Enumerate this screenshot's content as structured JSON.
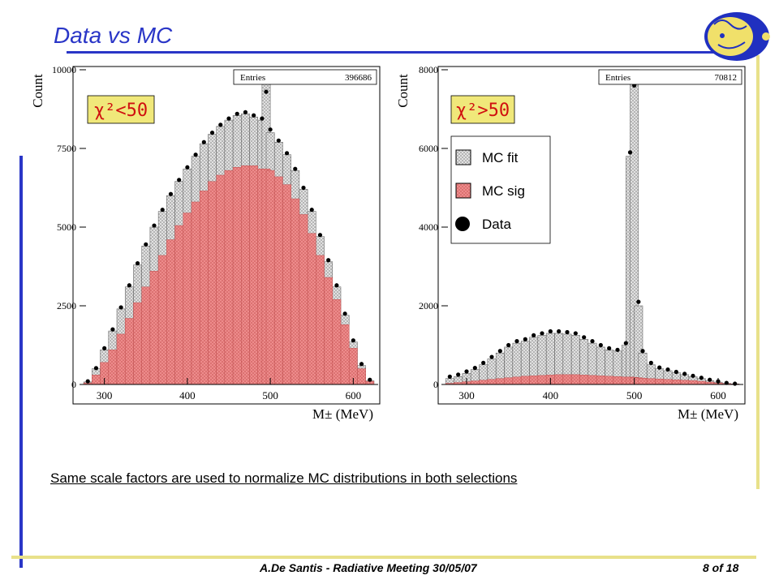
{
  "slide": {
    "title": "Data vs MC",
    "caption": "Same scale factors  are used to normalize MC distributions in both selections",
    "footer": "A.De Santis - Radiative Meeting 30/05/07",
    "page": "8 of 18"
  },
  "colors": {
    "title": "#2a36c7",
    "sig_fill": "#f09090",
    "fit_fill": "#d8d8d8",
    "data": "#000000"
  },
  "chart_data": [
    {
      "type": "bar",
      "selection_label": "χ²<50",
      "stats_label": "Entries",
      "stats_value": "396686",
      "xlabel": "M± (MeV)",
      "ylabel": "Count",
      "xlim": [
        270,
        630
      ],
      "ylim": [
        0,
        10000
      ],
      "yticks": [
        "0",
        "2500",
        "5000",
        "7500",
        "10000"
      ],
      "xticks": [
        "300",
        "400",
        "500",
        "600"
      ],
      "x": [
        280,
        290,
        300,
        310,
        320,
        330,
        340,
        350,
        360,
        370,
        380,
        390,
        400,
        410,
        420,
        430,
        440,
        450,
        460,
        470,
        480,
        490,
        495,
        500,
        510,
        520,
        530,
        540,
        550,
        560,
        570,
        580,
        590,
        600,
        610,
        620
      ],
      "series": [
        {
          "name": "MC sig",
          "values": [
            50,
            300,
            700,
            1100,
            1600,
            2100,
            2600,
            3100,
            3600,
            4100,
            4600,
            5050,
            5450,
            5800,
            6150,
            6450,
            6650,
            6800,
            6900,
            6950,
            6950,
            6850,
            6850,
            6800,
            6600,
            6350,
            5900,
            5400,
            4800,
            4100,
            3400,
            2700,
            1900,
            1150,
            500,
            100
          ]
        },
        {
          "name": "MC fit",
          "values": [
            80,
            500,
            1100,
            1700,
            2400,
            3100,
            3800,
            4400,
            5000,
            5500,
            6000,
            6450,
            6850,
            7250,
            7650,
            7950,
            8200,
            8400,
            8550,
            8600,
            8500,
            8400,
            9700,
            8000,
            7700,
            7300,
            6800,
            6200,
            5500,
            4700,
            3900,
            3100,
            2200,
            1350,
            600,
            120
          ]
        },
        {
          "name": "Data",
          "values": [
            100,
            520,
            1150,
            1750,
            2450,
            3150,
            3850,
            4450,
            5050,
            5550,
            6050,
            6500,
            6900,
            7300,
            7700,
            8000,
            8250,
            8450,
            8600,
            8650,
            8550,
            8450,
            9300,
            8100,
            7750,
            7350,
            6850,
            6250,
            5550,
            4750,
            3950,
            3150,
            2250,
            1400,
            650,
            150
          ]
        }
      ]
    },
    {
      "type": "bar",
      "selection_label": "χ²>50",
      "stats_label": "Entries",
      "stats_value": "70812",
      "xlabel": "M± (MeV)",
      "ylabel": "Count",
      "xlim": [
        270,
        630
      ],
      "ylim": [
        0,
        8000
      ],
      "yticks": [
        "0",
        "2000",
        "4000",
        "6000",
        "8000"
      ],
      "xticks": [
        "300",
        "400",
        "500",
        "600"
      ],
      "legend": {
        "position": "top-left",
        "items": [
          "MC fit",
          "MC sig",
          "Data"
        ]
      },
      "x": [
        280,
        290,
        300,
        310,
        320,
        330,
        340,
        350,
        360,
        370,
        380,
        390,
        400,
        410,
        420,
        430,
        440,
        450,
        460,
        470,
        480,
        490,
        495,
        500,
        505,
        510,
        520,
        530,
        540,
        550,
        560,
        570,
        580,
        590,
        600,
        610,
        620
      ],
      "series": [
        {
          "name": "MC sig",
          "values": [
            30,
            50,
            70,
            90,
            110,
            130,
            150,
            170,
            190,
            210,
            220,
            230,
            240,
            250,
            250,
            250,
            240,
            230,
            220,
            210,
            200,
            190,
            190,
            180,
            170,
            160,
            150,
            140,
            130,
            120,
            110,
            100,
            80,
            60,
            40,
            20,
            10
          ]
        },
        {
          "name": "MC fit",
          "values": [
            150,
            200,
            280,
            380,
            500,
            650,
            800,
            950,
            1050,
            1100,
            1200,
            1250,
            1300,
            1300,
            1280,
            1250,
            1150,
            1050,
            950,
            880,
            850,
            1000,
            5800,
            8000,
            2000,
            800,
            500,
            400,
            350,
            300,
            250,
            200,
            150,
            100,
            60,
            30,
            15
          ]
        },
        {
          "name": "Data",
          "values": [
            200,
            250,
            330,
            420,
            550,
            700,
            850,
            1000,
            1100,
            1150,
            1250,
            1300,
            1350,
            1350,
            1330,
            1300,
            1200,
            1100,
            1000,
            920,
            880,
            1050,
            5900,
            7600,
            2100,
            850,
            550,
            430,
            380,
            320,
            270,
            220,
            170,
            120,
            80,
            40,
            20
          ]
        }
      ]
    }
  ]
}
